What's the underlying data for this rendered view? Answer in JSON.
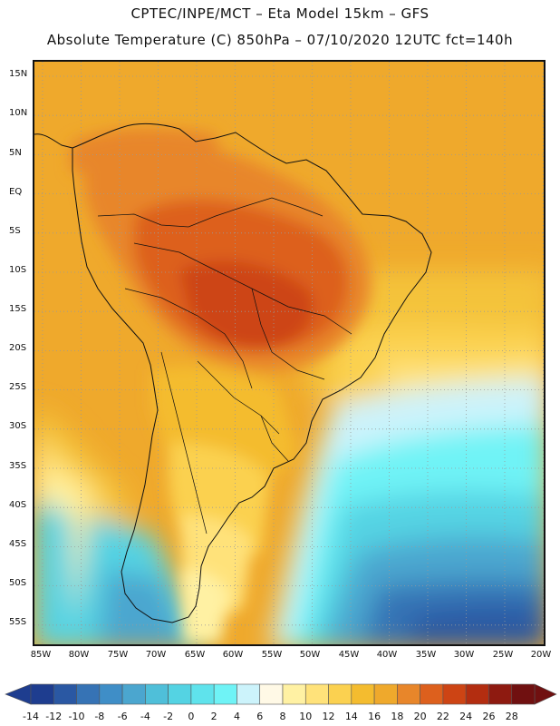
{
  "header": {
    "line1": "CPTEC/INPE/MCT –  Eta Model 15km – GFS",
    "line2": "Absolute Temperature (C) 850hPa – 07/10/2020 12UTC fct=140h"
  },
  "map": {
    "lat_labels": [
      "15N",
      "10N",
      "5N",
      "EQ",
      "5S",
      "10S",
      "15S",
      "20S",
      "25S",
      "30S",
      "35S",
      "40S",
      "45S",
      "50S",
      "55S"
    ],
    "lon_labels": [
      "85W",
      "80W",
      "75W",
      "70W",
      "65W",
      "60W",
      "55W",
      "50W",
      "45W",
      "40W",
      "35W",
      "30W",
      "25W",
      "20W"
    ],
    "lat_range": [
      18,
      -58
    ],
    "lon_range": [
      -86,
      -19.5
    ]
  },
  "legend": {
    "labels": [
      "-14",
      "-12",
      "-10",
      "-8",
      "-6",
      "-4",
      "-2",
      "0",
      "2",
      "4",
      "6",
      "8",
      "10",
      "12",
      "14",
      "16",
      "18",
      "20",
      "22",
      "24",
      "26",
      "28"
    ],
    "colors": [
      "#1e3d8f",
      "#2a58a3",
      "#3673b5",
      "#3f8ec7",
      "#4ba6cf",
      "#4fbfd9",
      "#54d3e3",
      "#5fe3ec",
      "#6ff3f6",
      "#ccf3fb",
      "#fff9e6",
      "#fff1a3",
      "#ffe27a",
      "#fbd150",
      "#f4bc2f",
      "#efa92c",
      "#e8862a",
      "#dd601d",
      "#cd4414",
      "#b32d10",
      "#8e1a10",
      "#701010"
    ]
  }
}
